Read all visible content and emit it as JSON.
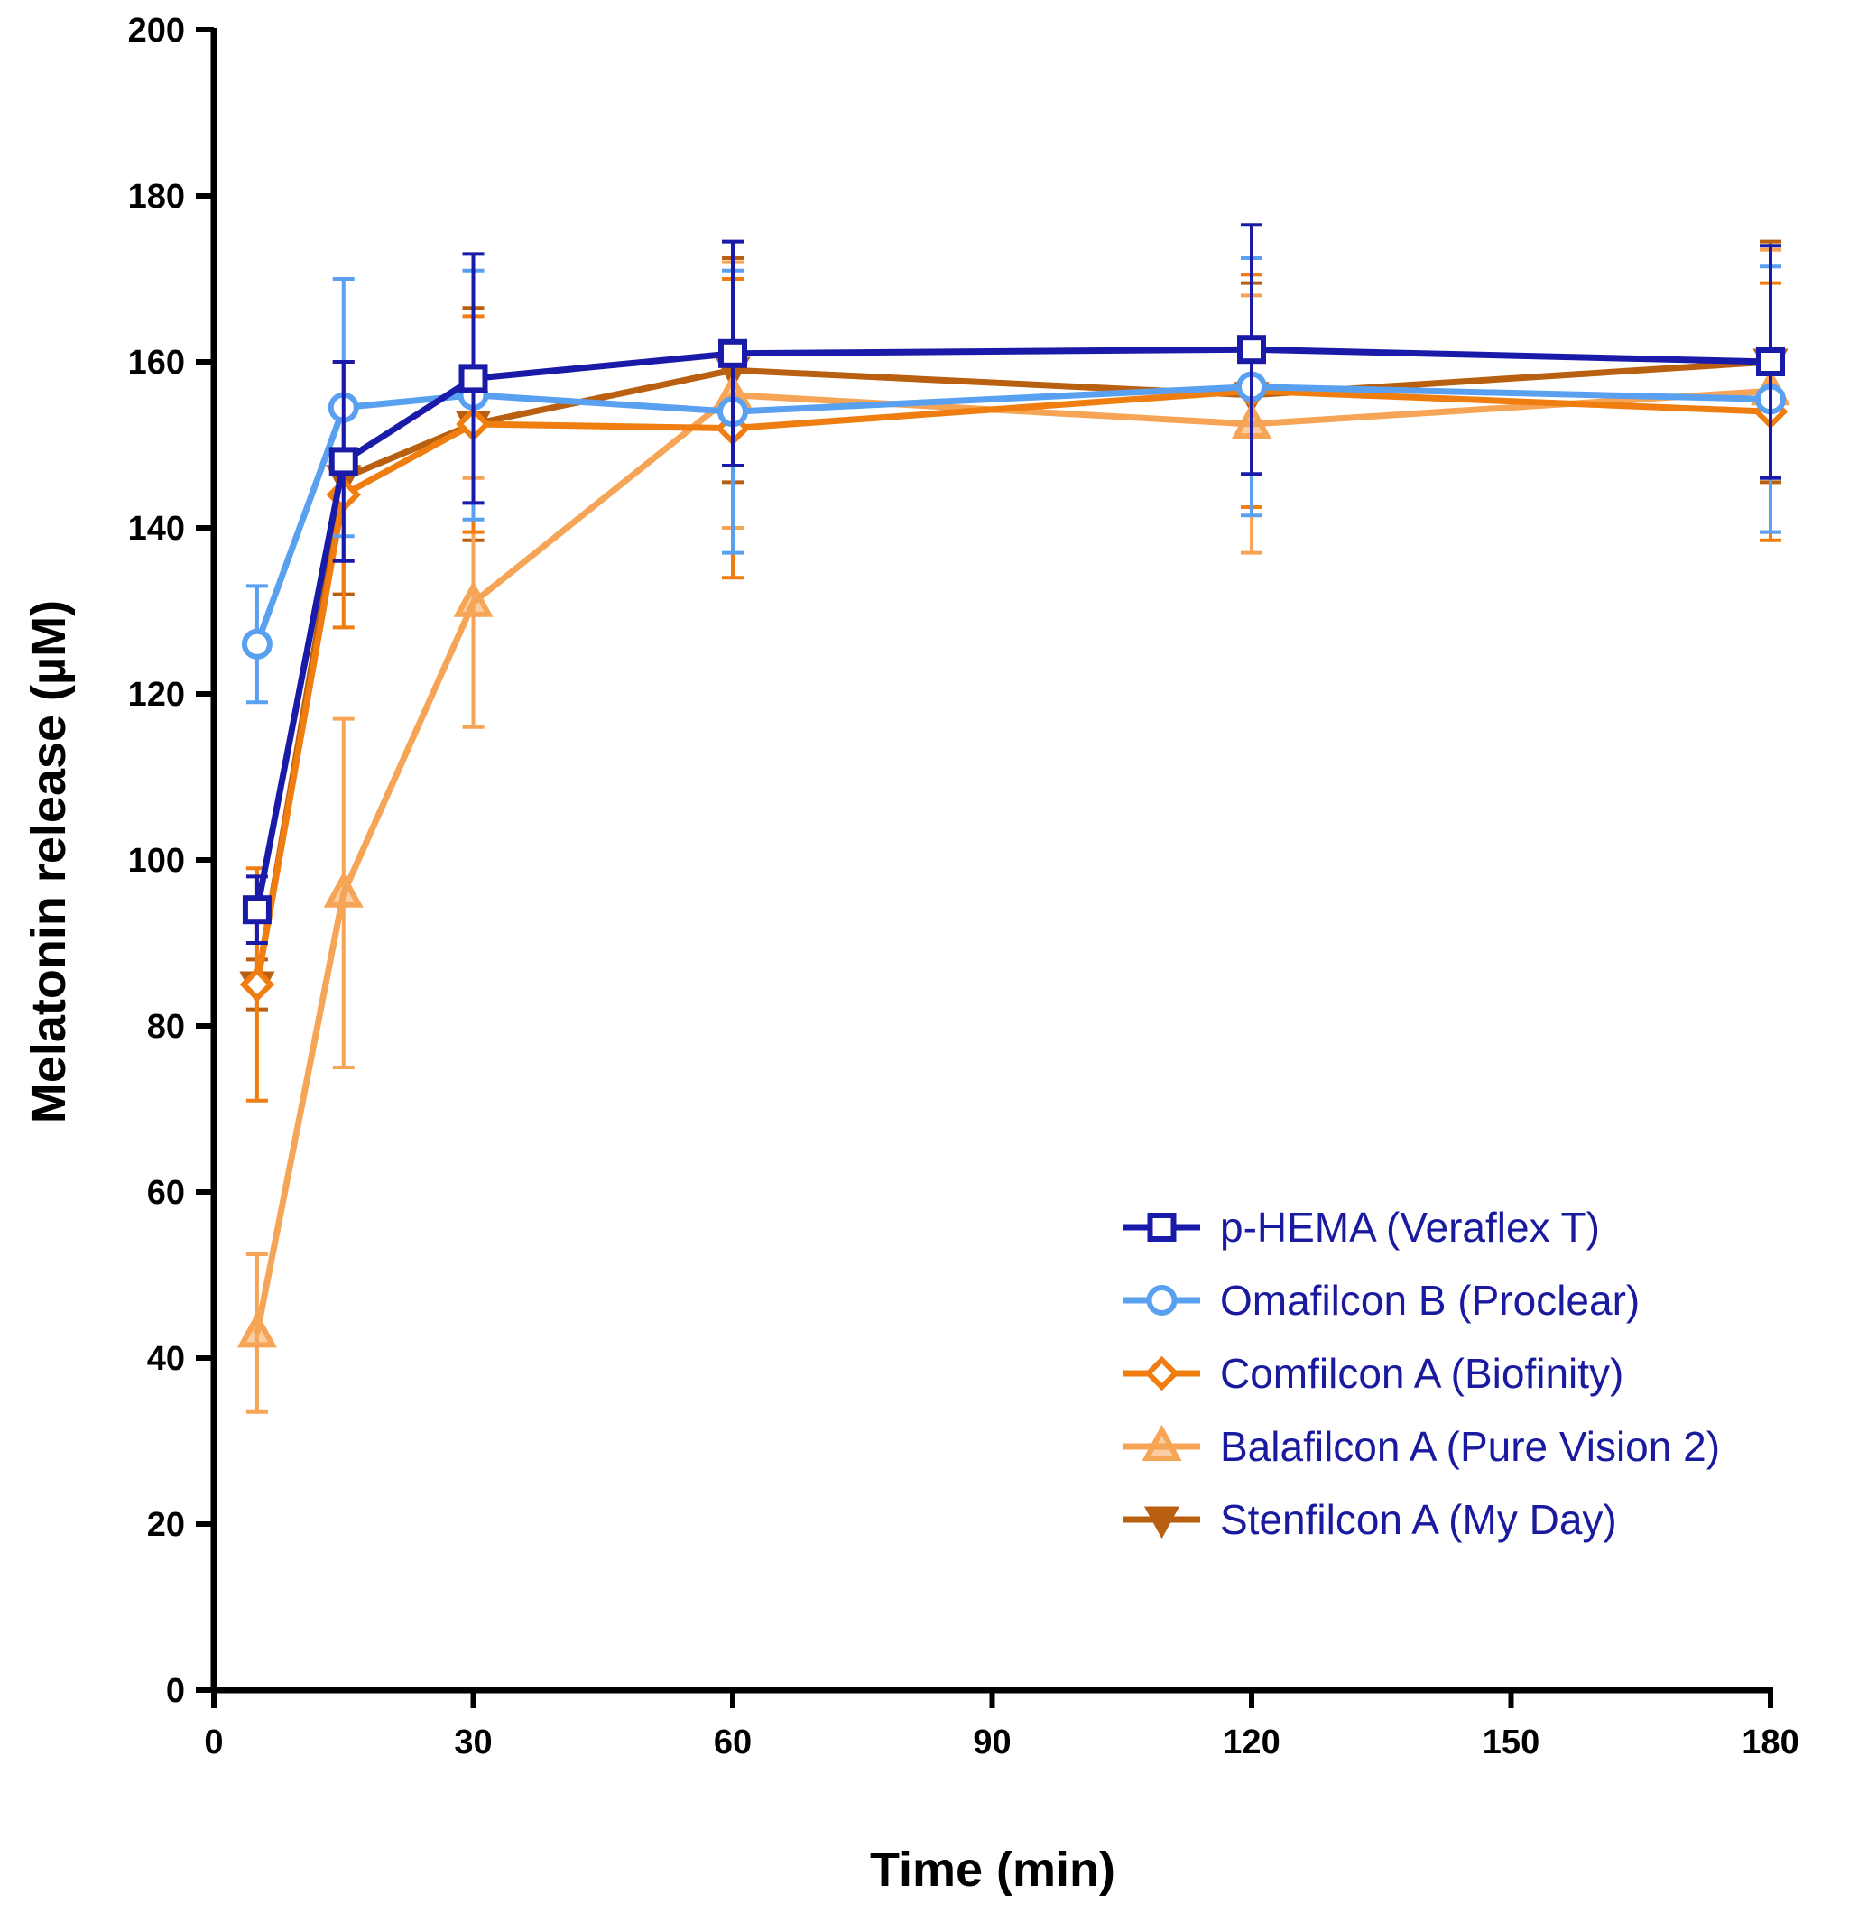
{
  "chart_data": {
    "type": "line",
    "xlabel": "Time (min)",
    "ylabel": "Melatonin release (µM)",
    "xlim": [
      0,
      180
    ],
    "ylim": [
      0,
      200
    ],
    "x_ticks": [
      0,
      30,
      60,
      90,
      120,
      150,
      180
    ],
    "y_ticks": [
      0,
      20,
      40,
      60,
      80,
      100,
      120,
      140,
      160,
      180,
      200
    ],
    "grid": false,
    "legend_position": "bottom-right",
    "x": [
      5,
      15,
      30,
      60,
      120,
      180
    ],
    "series": [
      {
        "name": "p-HEMA (Veraflex T)",
        "color": "#1a1aa8",
        "marker": "square-open",
        "values": [
          94,
          148,
          158,
          161,
          161.5,
          160
        ],
        "errors": [
          4,
          12,
          15,
          13.5,
          15,
          14
        ]
      },
      {
        "name": "Omafilcon B (Proclear)",
        "color": "#5aa0f0",
        "marker": "circle-open",
        "values": [
          126,
          154.5,
          156,
          154,
          157,
          155.5
        ],
        "errors": [
          7,
          15.5,
          15,
          17,
          15.5,
          16
        ]
      },
      {
        "name": "Comfilcon A (Biofinity)",
        "color": "#f07d10",
        "marker": "diamond-open",
        "values": [
          85,
          144,
          152.5,
          152,
          156.5,
          154
        ],
        "errors": [
          14,
          16,
          13,
          18,
          14,
          15.5
        ]
      },
      {
        "name": "Balafilcon A (Pure Vision 2)",
        "color": "#f6a455",
        "marker": "triangle-up-open",
        "values": [
          43,
          96,
          131,
          156,
          152.5,
          156.5
        ],
        "errors": [
          9.5,
          21,
          15,
          16,
          15.5,
          17
        ]
      },
      {
        "name": "Stenfilcon A (My Day)",
        "color": "#b85f10",
        "marker": "triangle-down-filled",
        "values": [
          85,
          146,
          152.5,
          159,
          156,
          160
        ],
        "errors": [
          3,
          14,
          14,
          13.5,
          13.5,
          14.5
        ]
      }
    ]
  }
}
